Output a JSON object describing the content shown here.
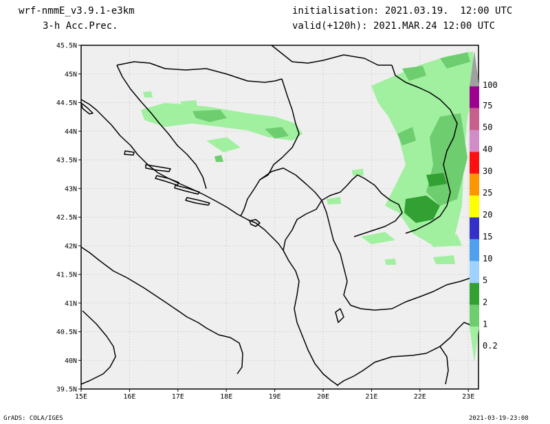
{
  "header": {
    "model": "wrf-nmmE_v3.9.1-e3km",
    "field": "3-h Acc.Prec.",
    "init": "initialisation: 2021.03.19.  12:00 UTC",
    "valid": "valid(+120h): 2021.MAR.24 12:00 UTC"
  },
  "footer": {
    "left": "GrADS: COLA/IGES",
    "right": "2021-03-19-23:08"
  },
  "map": {
    "lat_ticks": [
      "45.5N",
      "45N",
      "44.5N",
      "44N",
      "43.5N",
      "43N",
      "42.5N",
      "42N",
      "41.5N",
      "41N",
      "40.5N",
      "40N",
      "39.5N"
    ],
    "lon_ticks": [
      "15E",
      "16E",
      "17E",
      "18E",
      "19E",
      "20E",
      "21E",
      "22E",
      "23E"
    ]
  },
  "legend": {
    "labels": [
      "100",
      "75",
      "50",
      "40",
      "30",
      "25",
      "20",
      "15",
      "10",
      "5",
      "2",
      "1",
      "0.2"
    ],
    "colors": [
      "#a0a0a0",
      "#9e0090",
      "#c8608c",
      "#d28cc8",
      "#ff1010",
      "#ff9600",
      "#ffff00",
      "#3232c8",
      "#50a0f0",
      "#a0d2ff",
      "#32a032",
      "#6ecd6e",
      "#a0f0a0"
    ]
  },
  "colors": {
    "land": "#efefef",
    "grid": "#b0b0b0",
    "precip_light": "#a0f0a0",
    "precip_mid": "#6ecd6e",
    "precip_dark": "#32a032"
  }
}
